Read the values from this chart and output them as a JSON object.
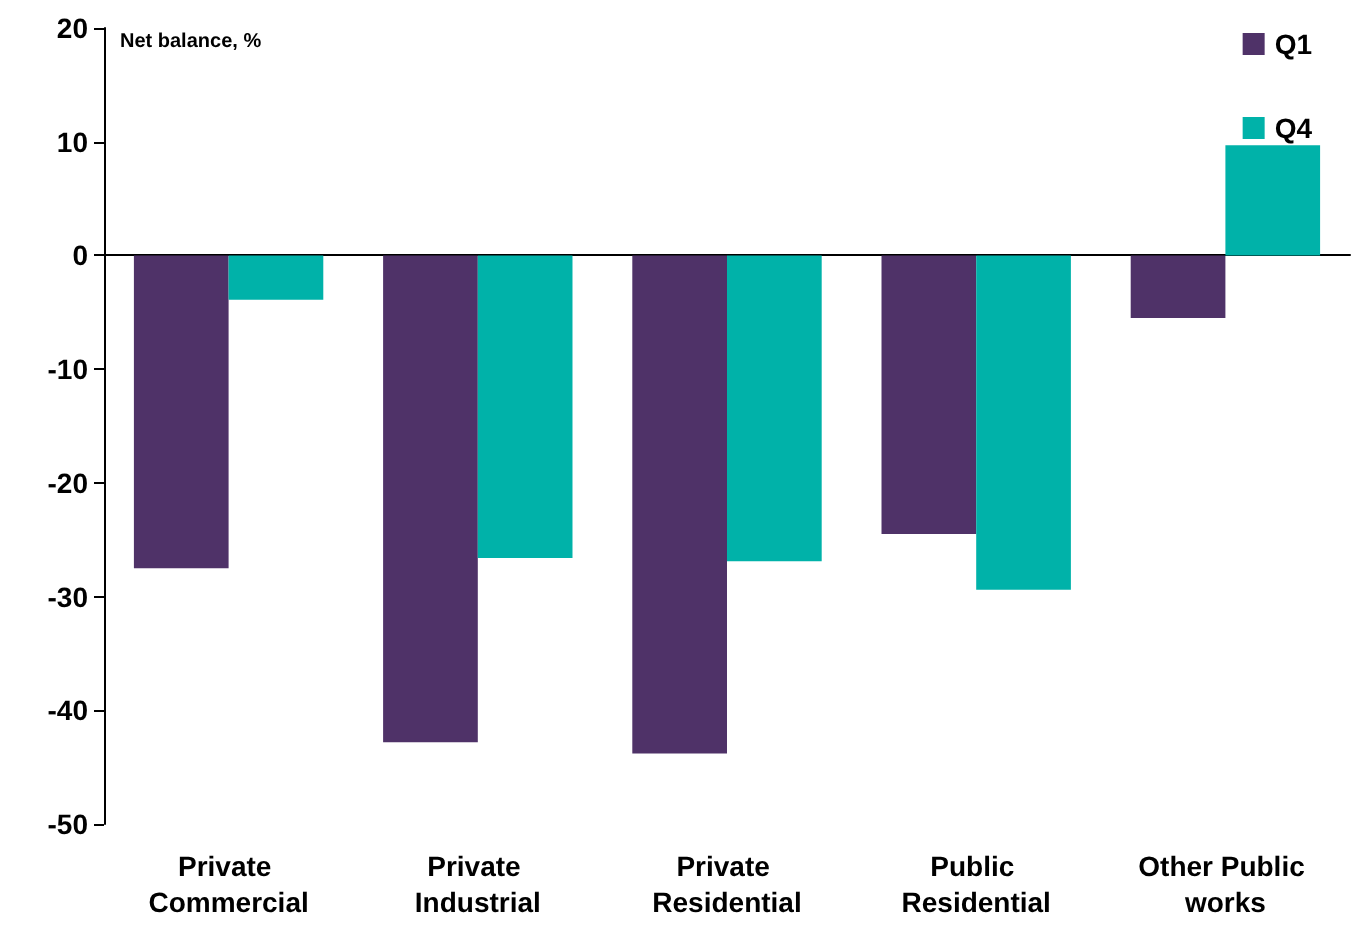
{
  "chart_data": {
    "type": "bar",
    "ylabel": "Net balance, %",
    "categories": [
      "Private Commercial",
      "Private Industrial",
      "Private Residential",
      "Public Residential",
      "Other Public works"
    ],
    "series": [
      {
        "name": "Q1",
        "color": "#4f3268",
        "values": [
          -27.5,
          -42.8,
          -43.8,
          -24.5,
          -5.5
        ]
      },
      {
        "name": "Q4",
        "color": "#00b2a9",
        "values": [
          -3.9,
          -26.6,
          -26.9,
          -29.4,
          9.7
        ]
      }
    ],
    "ylim": [
      -50,
      20
    ],
    "yticks": [
      -50,
      -40,
      -30,
      -20,
      -10,
      0,
      10,
      20
    ],
    "legend": "top right"
  }
}
